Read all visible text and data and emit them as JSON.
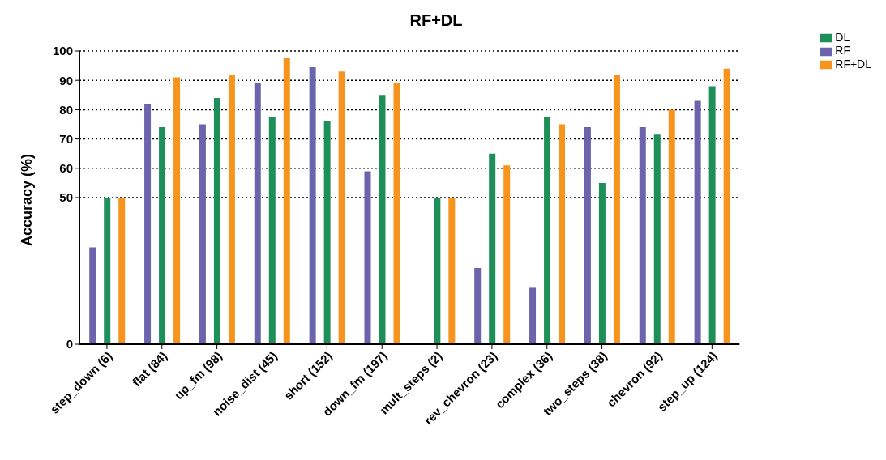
{
  "chart_data": {
    "type": "bar",
    "title": "RF+DL",
    "ylabel": "Accuracy (%)",
    "categories": [
      "step_down (6)",
      "flat (84)",
      "up_fm (98)",
      "noise_dist (45)",
      "short (152)",
      "down_fm (197)",
      "mult_steps (2)",
      "rev_chevron (23)",
      "complex (36)",
      "two_steps (38)",
      "chevron (92)",
      "step_up (124)"
    ],
    "series": [
      {
        "name": "RF",
        "color": "#6b63ac",
        "values": [
          33,
          82,
          75,
          89,
          94.5,
          59,
          0,
          26,
          19.5,
          74,
          74,
          83
        ]
      },
      {
        "name": "DL",
        "color": "#1f8f5a",
        "values": [
          50,
          74,
          84,
          77.5,
          76,
          85,
          50,
          65,
          77.5,
          55,
          71.5,
          88
        ]
      },
      {
        "name": "RF+DL",
        "color": "#f7941d",
        "values": [
          50,
          91,
          92,
          97.5,
          93,
          89,
          50,
          61,
          75,
          92,
          80,
          94
        ]
      }
    ],
    "ylim": [
      0,
      100
    ],
    "yticks": [
      0,
      50,
      60,
      70,
      80,
      90,
      100
    ],
    "grid": "y",
    "legend": "top right"
  }
}
